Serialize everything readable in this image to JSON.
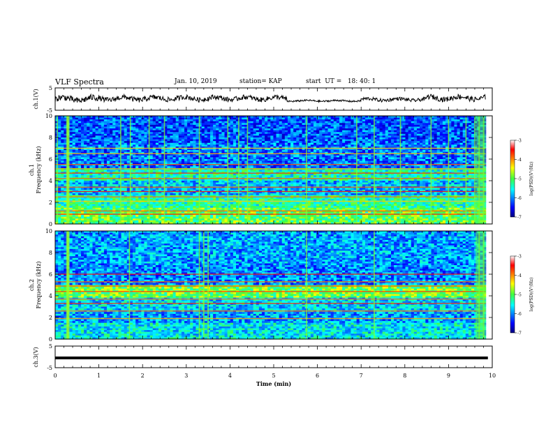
{
  "header": {
    "title": "VLF Spectra",
    "date": "Jan. 10, 2019",
    "station": "station= KAP",
    "start": "start  UT =   18: 40: 1"
  },
  "chart_data": [
    {
      "type": "line",
      "panel": "ch1-voltage",
      "ylabel": "ch.1(V)",
      "ylim": [
        -5,
        5
      ],
      "yticks": [
        "5",
        "-5"
      ],
      "xlim": [
        0,
        10
      ],
      "description_values": "noisy trace centered near 0 V, amplitude roughly ±2 V, quieter segment 5.5–7 min",
      "segments": [
        {
          "x0": 0.0,
          "x1": 1.0,
          "center": 0.0,
          "amp": 2.2
        },
        {
          "x0": 1.0,
          "x1": 2.5,
          "center": 0.2,
          "amp": 1.8
        },
        {
          "x0": 2.5,
          "x1": 5.3,
          "center": 0.3,
          "amp": 1.7
        },
        {
          "x0": 5.3,
          "x1": 7.0,
          "center": -0.8,
          "amp": 0.6
        },
        {
          "x0": 7.0,
          "x1": 8.5,
          "center": -0.2,
          "amp": 1.2
        },
        {
          "x0": 8.5,
          "x1": 9.85,
          "center": 0.5,
          "amp": 1.8
        }
      ]
    },
    {
      "type": "heatmap",
      "panel": "ch1-spectrogram",
      "ylabel": "ch.1 Frequency (kHz)",
      "ylabel_lines": [
        "ch.1",
        "Frequency (kHz)"
      ],
      "ylim": [
        0,
        10
      ],
      "yticks": [
        "0",
        "2",
        "4",
        "6",
        "8",
        "10"
      ],
      "xlim": [
        0,
        10
      ],
      "colorbar": {
        "label": "log(PSD)(V²/Hz)",
        "range": [
          -7,
          -3
        ],
        "ticks": [
          "-3",
          "-4",
          "-5",
          "-6",
          "-7"
        ]
      },
      "bands": [
        {
          "f0": 0.0,
          "f1": 1.5,
          "level": -5.0
        },
        {
          "f0": 1.5,
          "f1": 2.6,
          "level": -5.3
        },
        {
          "f0": 2.6,
          "f1": 4.0,
          "level": -5.8
        },
        {
          "f0": 4.0,
          "f1": 5.2,
          "level": -5.4
        },
        {
          "f0": 5.2,
          "f1": 7.5,
          "level": -6.1
        },
        {
          "f0": 7.5,
          "f1": 10.0,
          "level": -6.2
        }
      ],
      "lines_khz": [
        2.1,
        2.5,
        3.0,
        3.4,
        4.2,
        4.7,
        5.1,
        5.5,
        6.5,
        7.0,
        0.9,
        1.2
      ],
      "bursts_min": [
        0.05,
        0.28,
        0.3,
        1.5,
        1.72,
        2.15,
        2.5,
        3.3,
        3.95,
        4.2,
        4.4,
        5.75,
        6.9,
        7.3,
        7.9,
        8.6,
        9.0,
        9.4,
        9.6,
        9.7,
        9.8
      ]
    },
    {
      "type": "heatmap",
      "panel": "ch2-spectrogram",
      "ylabel": "ch.2 Frequency (kHz)",
      "ylabel_lines": [
        "ch.2",
        "Frequency (kHz)"
      ],
      "ylim": [
        0,
        10
      ],
      "yticks": [
        "0",
        "2",
        "4",
        "6",
        "8",
        "10"
      ],
      "xlim": [
        0,
        10
      ],
      "colorbar": {
        "label": "log(PSD)(V²/Hz)",
        "range": [
          -7,
          -3
        ],
        "ticks": [
          "-3",
          "-4",
          "-5",
          "-6",
          "-7"
        ]
      },
      "bands": [
        {
          "f0": 0.0,
          "f1": 1.5,
          "level": -5.6
        },
        {
          "f0": 1.5,
          "f1": 2.6,
          "level": -5.9
        },
        {
          "f0": 2.6,
          "f1": 3.8,
          "level": -5.7
        },
        {
          "f0": 3.8,
          "f1": 5.0,
          "level": -4.9
        },
        {
          "f0": 5.0,
          "f1": 7.0,
          "level": -6.0
        },
        {
          "f0": 7.0,
          "f1": 10.0,
          "level": -5.9
        }
      ],
      "lines_khz": [
        1.9,
        2.6,
        3.3,
        3.7,
        4.4,
        4.9,
        5.3,
        6.0
      ],
      "bursts_min": [
        0.28,
        0.3,
        1.7,
        3.3,
        3.4,
        3.5,
        5.75,
        7.3,
        9.7,
        9.8
      ]
    },
    {
      "type": "line",
      "panel": "ch3-voltage",
      "ylabel": "ch.3(V)",
      "ylim": [
        -5,
        5
      ],
      "yticks": [
        "5",
        "-5"
      ],
      "xlim": [
        0,
        10
      ],
      "xlabel": "Time (min)",
      "xticks": [
        "0",
        "1",
        "2",
        "3",
        "4",
        "5",
        "6",
        "7",
        "8",
        "9",
        "10"
      ],
      "level": -0.5,
      "x_end": 9.9
    }
  ]
}
